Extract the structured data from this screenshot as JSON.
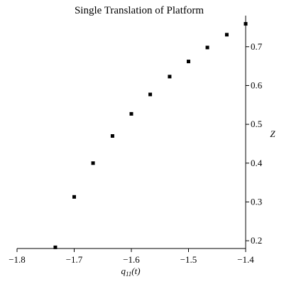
{
  "chart_data": {
    "type": "scatter",
    "title": "Single Translation of Platform",
    "xlabel": {
      "base": "q",
      "sub": "11",
      "suffix": "(t)"
    },
    "ylabel": "Z",
    "xlim": [
      -1.8,
      -1.4
    ],
    "ylim": [
      0.18,
      0.76
    ],
    "xticks": [
      -1.8,
      -1.7,
      -1.6,
      -1.5,
      -1.4
    ],
    "xtick_labels": [
      "−1.8",
      "−1.7",
      "−1.6",
      "−1.5",
      "−1.4"
    ],
    "yticks": [
      0.2,
      0.3,
      0.4,
      0.5,
      0.6,
      0.7
    ],
    "ytick_labels": [
      "0.2",
      "0.3",
      "0.4",
      "0.5",
      "0.6",
      "0.7"
    ],
    "y_axis_side": "right",
    "grid": false,
    "legend": false,
    "marker": "square",
    "color": "#000000",
    "x": [
      -1.733,
      -1.7,
      -1.667,
      -1.633,
      -1.6,
      -1.567,
      -1.533,
      -1.5,
      -1.467,
      -1.433,
      -1.4
    ],
    "y": [
      0.183,
      0.313,
      0.4,
      0.47,
      0.527,
      0.577,
      0.623,
      0.662,
      0.698,
      0.731,
      0.759
    ]
  }
}
